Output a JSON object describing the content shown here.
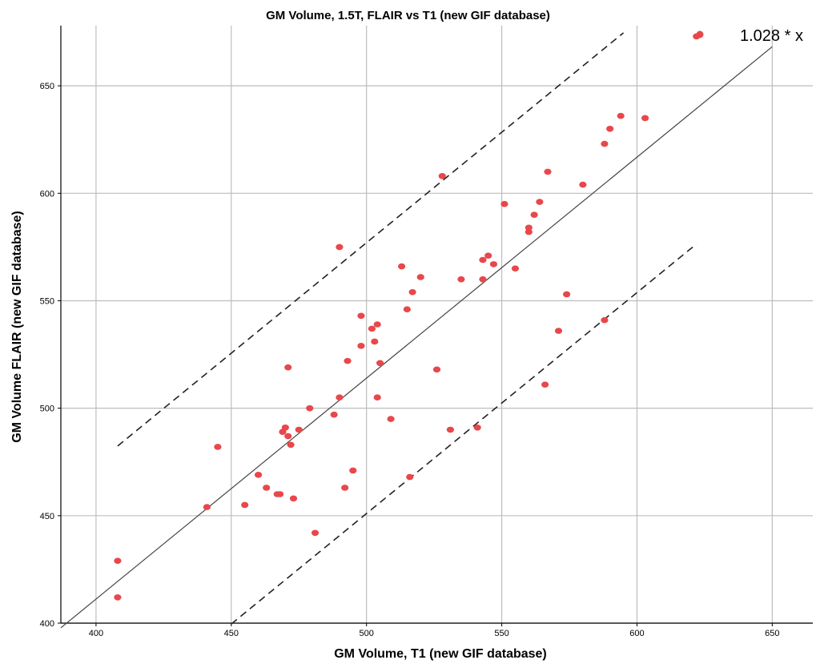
{
  "chart_data": {
    "type": "scatter",
    "title": "GM Volume, 1.5T, FLAIR vs T1 (new GIF database)",
    "xlabel": "GM Volume, T1 (new GIF database)",
    "ylabel": "GM Volume FLAIR (new GIF database)",
    "xlim": [
      387,
      665
    ],
    "ylim": [
      400,
      678
    ],
    "xticks": [
      400,
      450,
      500,
      550,
      600,
      650
    ],
    "yticks": [
      400,
      450,
      500,
      550,
      600,
      650
    ],
    "grid": "vertical and horizontal",
    "legend": {
      "label": "1.028 * x",
      "placement": "top-right"
    },
    "colors": {
      "points": "#e8474b",
      "fit_line": "#444444",
      "bound_lines": "#222222",
      "grid": "#bdbdbd"
    },
    "fit_line": {
      "slope": 1.028,
      "x_range": [
        387,
        650
      ]
    },
    "bound_lines": [
      {
        "x_range": [
          408,
          595
        ],
        "offset": 63
      },
      {
        "x_range": [
          450,
          622
        ],
        "offset": -63
      }
    ],
    "points": [
      [
        408,
        429
      ],
      [
        408,
        412
      ],
      [
        441,
        454
      ],
      [
        445,
        482
      ],
      [
        455,
        455
      ],
      [
        460,
        469
      ],
      [
        463,
        463
      ],
      [
        467,
        460
      ],
      [
        468,
        460
      ],
      [
        469,
        489
      ],
      [
        470,
        491
      ],
      [
        471,
        487
      ],
      [
        471,
        519
      ],
      [
        472,
        483
      ],
      [
        473,
        458
      ],
      [
        475,
        490
      ],
      [
        479,
        500
      ],
      [
        481,
        442
      ],
      [
        488,
        497
      ],
      [
        490,
        505
      ],
      [
        490,
        575
      ],
      [
        492,
        463
      ],
      [
        493,
        522
      ],
      [
        495,
        471
      ],
      [
        498,
        529
      ],
      [
        498,
        543
      ],
      [
        502,
        537
      ],
      [
        503,
        531
      ],
      [
        504,
        505
      ],
      [
        504,
        539
      ],
      [
        505,
        521
      ],
      [
        509,
        495
      ],
      [
        513,
        566
      ],
      [
        515,
        546
      ],
      [
        516,
        468
      ],
      [
        517,
        554
      ],
      [
        520,
        561
      ],
      [
        526,
        518
      ],
      [
        528,
        608
      ],
      [
        531,
        490
      ],
      [
        535,
        560
      ],
      [
        541,
        491
      ],
      [
        543,
        560
      ],
      [
        543,
        569
      ],
      [
        545,
        571
      ],
      [
        547,
        567
      ],
      [
        551,
        595
      ],
      [
        555,
        565
      ],
      [
        560,
        582
      ],
      [
        560,
        584
      ],
      [
        562,
        590
      ],
      [
        564,
        596
      ],
      [
        566,
        511
      ],
      [
        567,
        610
      ],
      [
        571,
        536
      ],
      [
        574,
        553
      ],
      [
        580,
        604
      ],
      [
        588,
        541
      ],
      [
        588,
        623
      ],
      [
        590,
        630
      ],
      [
        594,
        636
      ],
      [
        603,
        635
      ],
      [
        622,
        673
      ]
    ]
  }
}
